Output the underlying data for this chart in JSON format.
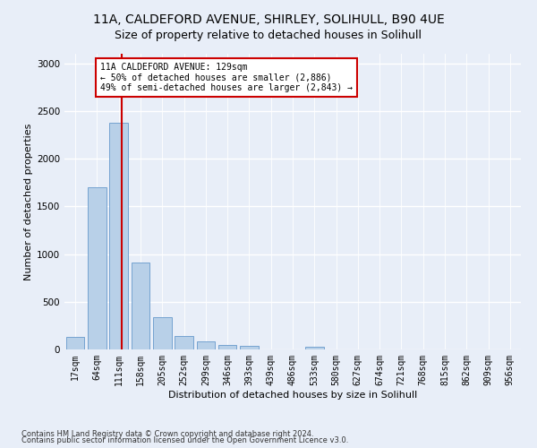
{
  "title_line1": "11A, CALDEFORD AVENUE, SHIRLEY, SOLIHULL, B90 4UE",
  "title_line2": "Size of property relative to detached houses in Solihull",
  "xlabel": "Distribution of detached houses by size in Solihull",
  "ylabel": "Number of detached properties",
  "categories": [
    "17sqm",
    "64sqm",
    "111sqm",
    "158sqm",
    "205sqm",
    "252sqm",
    "299sqm",
    "346sqm",
    "393sqm",
    "439sqm",
    "486sqm",
    "533sqm",
    "580sqm",
    "627sqm",
    "674sqm",
    "721sqm",
    "768sqm",
    "815sqm",
    "862sqm",
    "909sqm",
    "956sqm"
  ],
  "values": [
    130,
    1700,
    2380,
    910,
    340,
    145,
    80,
    50,
    40,
    0,
    0,
    30,
    0,
    0,
    0,
    0,
    0,
    0,
    0,
    0,
    0
  ],
  "bar_color": "#b8d0e8",
  "bar_edge_color": "#6699cc",
  "vline_color": "#cc0000",
  "annotation_text": "11A CALDEFORD AVENUE: 129sqm\n← 50% of detached houses are smaller (2,886)\n49% of semi-detached houses are larger (2,843) →",
  "annotation_box_facecolor": "#ffffff",
  "annotation_box_edgecolor": "#cc0000",
  "ylim": [
    0,
    3100
  ],
  "yticks": [
    0,
    500,
    1000,
    1500,
    2000,
    2500,
    3000
  ],
  "footer_line1": "Contains HM Land Registry data © Crown copyright and database right 2024.",
  "footer_line2": "Contains public sector information licensed under the Open Government Licence v3.0.",
  "bg_color": "#e8eef8",
  "plot_bg_color": "#e8eef8",
  "grid_color": "#ffffff",
  "title_fontsize": 10,
  "subtitle_fontsize": 9,
  "tick_fontsize": 7,
  "ylabel_fontsize": 8,
  "xlabel_fontsize": 8,
  "annotation_fontsize": 7,
  "footer_fontsize": 6
}
